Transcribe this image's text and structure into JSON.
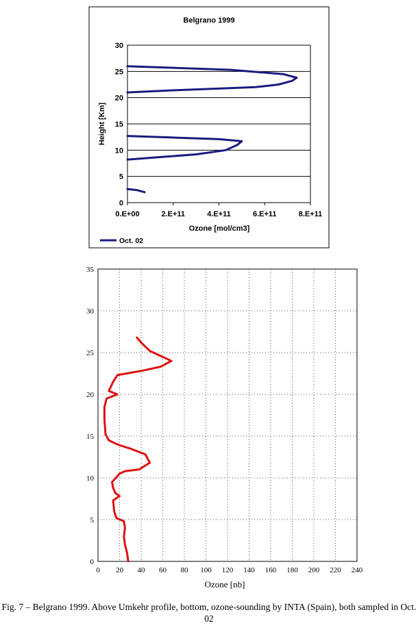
{
  "chart_data": [
    {
      "type": "line",
      "title": "Belgrano 1999",
      "xlabel": "Ozone  [mol/cm3]",
      "ylabel": "Height  [Km]",
      "xlim": [
        0,
        800000000000
      ],
      "ylim": [
        0,
        30
      ],
      "x_ticks": [
        "0.E+00",
        "2.E+11",
        "4.E+11",
        "6.E+11",
        "8.E+11"
      ],
      "y_ticks": [
        "0",
        "5",
        "10",
        "15",
        "20",
        "25",
        "30"
      ],
      "grid": "horizontal",
      "legend": "bottom-left",
      "series": [
        {
          "name": "Oct. 02",
          "color": "#1a1a7e",
          "segments": [
            [
              {
                "x": 75000000000.0,
                "y": 2.0
              },
              {
                "x": 40000000000.0,
                "y": 2.4
              },
              {
                "x": 0,
                "y": 2.6
              }
            ],
            [
              {
                "x": 0,
                "y": 8.2
              },
              {
                "x": 150000000000.0,
                "y": 8.7
              },
              {
                "x": 300000000000.0,
                "y": 9.2
              },
              {
                "x": 430000000000.0,
                "y": 10.0
              },
              {
                "x": 480000000000.0,
                "y": 11.0
              },
              {
                "x": 500000000000.0,
                "y": 11.7
              },
              {
                "x": 400000000000.0,
                "y": 12.1
              },
              {
                "x": 200000000000.0,
                "y": 12.4
              },
              {
                "x": 0,
                "y": 12.7
              }
            ],
            [
              {
                "x": 0,
                "y": 21.0
              },
              {
                "x": 200000000000.0,
                "y": 21.4
              },
              {
                "x": 560000000000.0,
                "y": 22.0
              },
              {
                "x": 660000000000.0,
                "y": 22.5
              },
              {
                "x": 720000000000.0,
                "y": 23.2
              },
              {
                "x": 740000000000.0,
                "y": 23.8
              },
              {
                "x": 680000000000.0,
                "y": 24.5
              },
              {
                "x": 450000000000.0,
                "y": 25.3
              },
              {
                "x": 0,
                "y": 26.0
              }
            ]
          ]
        }
      ]
    },
    {
      "type": "line",
      "title": "",
      "xlabel": "Ozone [nb]",
      "ylabel": "",
      "xlim": [
        0,
        240
      ],
      "ylim": [
        0,
        35
      ],
      "x_ticks": [
        "0",
        "20",
        "40",
        "60",
        "80",
        "100",
        "120",
        "140",
        "160",
        "180",
        "200",
        "220",
        "240"
      ],
      "y_ticks": [
        "0",
        "5",
        "10",
        "15",
        "20",
        "25",
        "30",
        "35"
      ],
      "grid": "dotted",
      "legend": "none",
      "series": [
        {
          "color": "#dd1111",
          "points": [
            {
              "x": 28,
              "y": 0
            },
            {
              "x": 27,
              "y": 1
            },
            {
              "x": 25,
              "y": 2
            },
            {
              "x": 24,
              "y": 3
            },
            {
              "x": 25,
              "y": 4
            },
            {
              "x": 24,
              "y": 4.8
            },
            {
              "x": 17,
              "y": 5.2
            },
            {
              "x": 15,
              "y": 6
            },
            {
              "x": 14,
              "y": 7.3
            },
            {
              "x": 20,
              "y": 7.8
            },
            {
              "x": 16,
              "y": 8.2
            },
            {
              "x": 14,
              "y": 8.8
            },
            {
              "x": 13,
              "y": 9.5
            },
            {
              "x": 20,
              "y": 10.5
            },
            {
              "x": 25,
              "y": 10.8
            },
            {
              "x": 38,
              "y": 11
            },
            {
              "x": 48,
              "y": 11.8
            },
            {
              "x": 44,
              "y": 12.8
            },
            {
              "x": 30,
              "y": 13.5
            },
            {
              "x": 18,
              "y": 14
            },
            {
              "x": 10,
              "y": 14.5
            },
            {
              "x": 7,
              "y": 15.2
            },
            {
              "x": 6,
              "y": 17
            },
            {
              "x": 6,
              "y": 18.5
            },
            {
              "x": 8,
              "y": 19.5
            },
            {
              "x": 18,
              "y": 20
            },
            {
              "x": 10,
              "y": 20.4
            },
            {
              "x": 14,
              "y": 21.5
            },
            {
              "x": 18,
              "y": 22.3
            },
            {
              "x": 40,
              "y": 22.8
            },
            {
              "x": 58,
              "y": 23.3
            },
            {
              "x": 68,
              "y": 24.0
            },
            {
              "x": 58,
              "y": 24.6
            },
            {
              "x": 48,
              "y": 25.2
            },
            {
              "x": 40,
              "y": 26.2
            },
            {
              "x": 36,
              "y": 26.8
            }
          ]
        }
      ]
    }
  ],
  "caption": "Fig. 7 – Belgrano 1999. Above Umkehr profile, bottom, ozone-sounding by INTA (Spain), both sampled in Oct. 02"
}
